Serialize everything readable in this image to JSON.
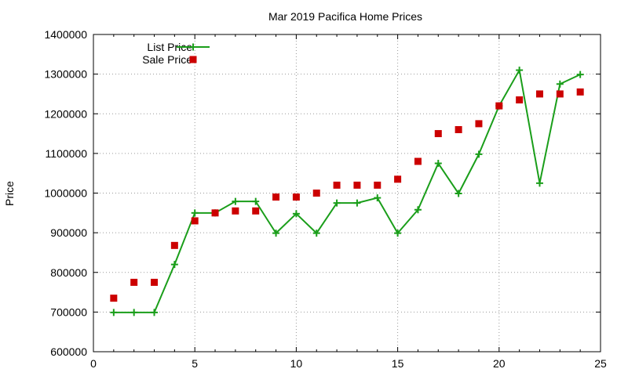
{
  "chart_data": {
    "type": "line",
    "title": "Mar 2019 Pacifica Home Prices",
    "xlabel": "",
    "ylabel": "Price",
    "xlim": [
      0,
      25
    ],
    "ylim": [
      600000,
      1400000
    ],
    "xticks": [
      0,
      5,
      10,
      15,
      20,
      25
    ],
    "yticks": [
      600000,
      700000,
      800000,
      900000,
      1000000,
      1100000,
      1200000,
      1300000,
      1400000
    ],
    "grid": true,
    "legend_position": "top-left",
    "series": [
      {
        "name": "List Price",
        "style": "line-with-plus-markers",
        "color": "#1a9e1a",
        "x": [
          1,
          2,
          3,
          4,
          5,
          6,
          7,
          8,
          9,
          10,
          11,
          12,
          13,
          14,
          15,
          16,
          17,
          18,
          19,
          20,
          21,
          22,
          23,
          24
        ],
        "y": [
          699000,
          699000,
          699000,
          820000,
          950000,
          950000,
          979000,
          979000,
          899000,
          948000,
          899000,
          975000,
          975000,
          988000,
          899000,
          958000,
          1075000,
          999000,
          1098000,
          1220000,
          1310000,
          1025000,
          1275000,
          1299000
        ]
      },
      {
        "name": "Sale Price",
        "style": "square-markers",
        "color": "#cc0000",
        "x": [
          1,
          2,
          3,
          4,
          5,
          6,
          7,
          8,
          9,
          10,
          11,
          12,
          13,
          14,
          15,
          16,
          17,
          18,
          19,
          20,
          21,
          22,
          23,
          24
        ],
        "y": [
          735000,
          775000,
          775000,
          868000,
          930000,
          950000,
          955000,
          955000,
          990000,
          990000,
          1000000,
          1020000,
          1020000,
          1020000,
          1035000,
          1080000,
          1150000,
          1160000,
          1175000,
          1220000,
          1235000,
          1250000,
          1250000,
          1255000
        ]
      }
    ]
  }
}
